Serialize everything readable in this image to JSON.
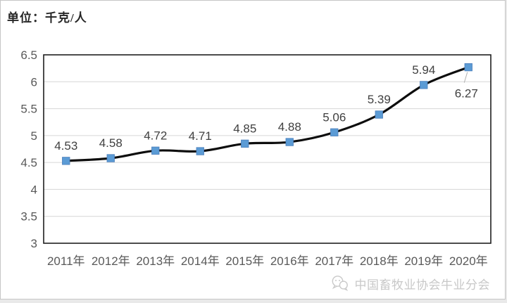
{
  "unit_label": "单位：千克/人",
  "watermark": {
    "icon": "wechat-icon",
    "text": "中国畜牧业协会牛业分会"
  },
  "colors": {
    "marker": "#5b9bd5",
    "marker_border": "#4a7ebb",
    "line": "#0d0d0d",
    "grid": "#d6d6d6",
    "plot_border": "#1f1f1f",
    "axis_text": "#595959",
    "data_label": "#404040",
    "leader": "#b0b0b0",
    "watermark_text": "#c8c8c8"
  },
  "chart_data": {
    "type": "line",
    "title": "",
    "xlabel": "",
    "ylabel": "千克/人",
    "categories": [
      "2011年",
      "2012年",
      "2013年",
      "2014年",
      "2015年",
      "2016年",
      "2017年",
      "2018年",
      "2019年",
      "2020年"
    ],
    "values": [
      4.53,
      4.58,
      4.72,
      4.71,
      4.85,
      4.88,
      5.06,
      5.39,
      5.94,
      6.27
    ],
    "data_labels": [
      "4.53",
      "4.58",
      "4.72",
      "4.71",
      "4.85",
      "4.88",
      "5.06",
      "5.39",
      "5.94",
      "6.27"
    ],
    "ylim": [
      3,
      6.5
    ],
    "ytick_step": 0.5,
    "grid": true,
    "smooth": true,
    "legend": "none",
    "marker": "square",
    "label_placement_overrides": {
      "9": "below"
    }
  }
}
